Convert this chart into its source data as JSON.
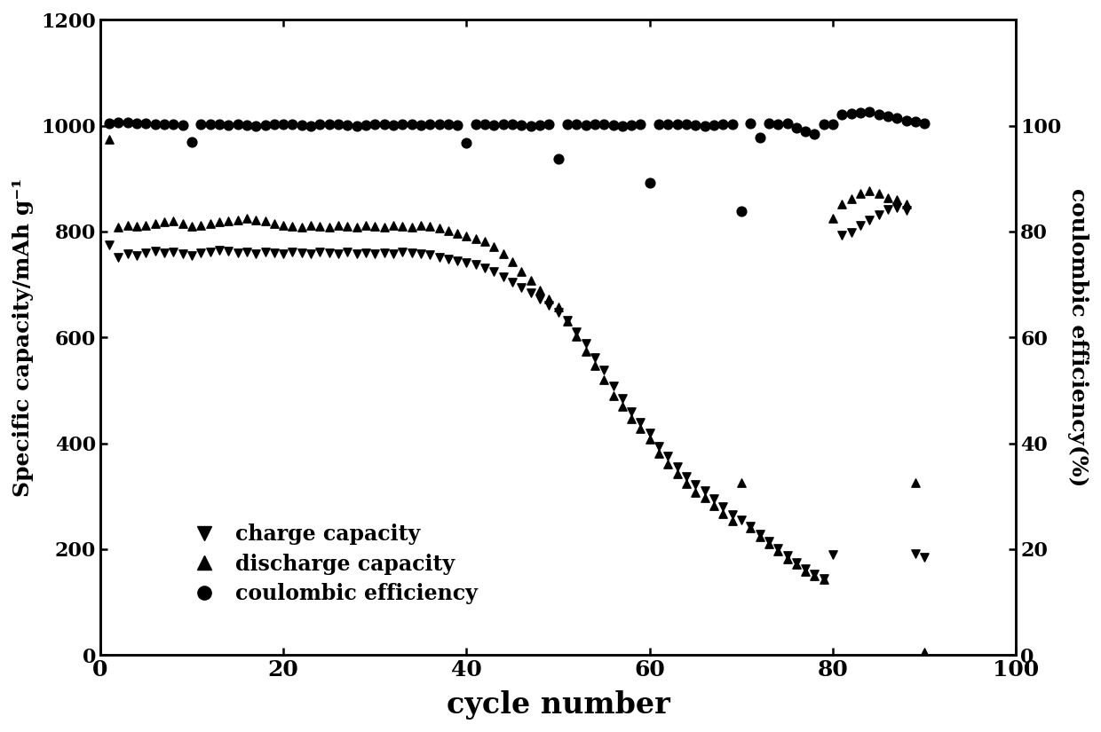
{
  "xlabel": "cycle number",
  "ylabel_left": "Specific capacity/mAh g⁻¹",
  "ylabel_right": "coulombic efficiency(%)",
  "xlim": [
    0,
    100
  ],
  "ylim_left": [
    0,
    1200
  ],
  "ylim_right": [
    0,
    120
  ],
  "xticks": [
    0,
    20,
    40,
    60,
    80,
    100
  ],
  "yticks_left": [
    0,
    200,
    400,
    600,
    800,
    1000,
    1200
  ],
  "yticks_right": [
    0,
    20,
    40,
    60,
    80,
    100
  ],
  "legend_labels": [
    "charge capacity",
    "discharge capacity",
    "coulombic efficiency"
  ],
  "background_color": "#ffffff",
  "marker_color": "#000000",
  "charge_capacity_x": [
    1,
    2,
    3,
    4,
    5,
    6,
    7,
    8,
    9,
    10,
    11,
    12,
    13,
    14,
    15,
    16,
    17,
    18,
    19,
    20,
    21,
    22,
    23,
    24,
    25,
    26,
    27,
    28,
    29,
    30,
    31,
    32,
    33,
    34,
    35,
    36,
    37,
    38,
    39,
    40,
    41,
    42,
    43,
    44,
    45,
    46,
    47,
    48,
    49,
    50,
    51,
    52,
    53,
    54,
    55,
    56,
    57,
    58,
    59,
    60,
    61,
    62,
    63,
    64,
    65,
    66,
    67,
    68,
    69,
    70,
    71,
    72,
    73,
    74,
    75,
    76,
    77,
    78,
    79,
    80,
    81,
    82,
    83,
    84,
    85,
    86,
    87,
    88,
    89,
    90
  ],
  "charge_capacity_y": [
    775,
    752,
    758,
    755,
    760,
    763,
    760,
    762,
    758,
    755,
    760,
    762,
    765,
    763,
    760,
    762,
    758,
    762,
    760,
    758,
    762,
    760,
    758,
    762,
    760,
    758,
    762,
    758,
    760,
    758,
    760,
    758,
    762,
    760,
    758,
    756,
    752,
    748,
    745,
    742,
    738,
    732,
    725,
    715,
    705,
    695,
    685,
    672,
    660,
    648,
    632,
    610,
    588,
    562,
    538,
    508,
    485,
    460,
    440,
    420,
    395,
    375,
    355,
    338,
    322,
    310,
    296,
    280,
    265,
    255,
    243,
    228,
    215,
    202,
    188,
    175,
    163,
    152,
    145,
    190,
    793,
    798,
    812,
    822,
    832,
    842,
    846,
    841,
    192,
    185
  ],
  "discharge_capacity_x": [
    1,
    2,
    3,
    4,
    5,
    6,
    7,
    8,
    9,
    10,
    11,
    12,
    13,
    14,
    15,
    16,
    17,
    18,
    19,
    20,
    21,
    22,
    23,
    24,
    25,
    26,
    27,
    28,
    29,
    30,
    31,
    32,
    33,
    34,
    35,
    36,
    37,
    38,
    39,
    40,
    41,
    42,
    43,
    44,
    45,
    46,
    47,
    48,
    49,
    50,
    51,
    52,
    53,
    54,
    55,
    56,
    57,
    58,
    59,
    60,
    61,
    62,
    63,
    64,
    65,
    66,
    67,
    68,
    69,
    70,
    71,
    72,
    73,
    74,
    75,
    76,
    77,
    78,
    79,
    80,
    81,
    82,
    83,
    84,
    85,
    86,
    87,
    88,
    89,
    90
  ],
  "discharge_capacity_y": [
    975,
    808,
    812,
    810,
    812,
    815,
    818,
    820,
    815,
    810,
    812,
    815,
    818,
    820,
    822,
    825,
    822,
    820,
    815,
    812,
    810,
    808,
    812,
    810,
    808,
    812,
    810,
    808,
    812,
    810,
    808,
    812,
    810,
    808,
    812,
    810,
    806,
    802,
    797,
    792,
    787,
    782,
    772,
    758,
    743,
    725,
    708,
    690,
    672,
    658,
    630,
    602,
    574,
    547,
    520,
    490,
    470,
    447,
    427,
    407,
    380,
    360,
    342,
    324,
    307,
    297,
    282,
    267,
    254,
    325,
    240,
    224,
    210,
    197,
    182,
    172,
    158,
    150,
    143,
    825,
    852,
    862,
    872,
    877,
    872,
    864,
    860,
    852,
    325,
    5
  ],
  "coulombic_efficiency_x": [
    1,
    2,
    3,
    4,
    5,
    6,
    7,
    8,
    9,
    10,
    11,
    12,
    13,
    14,
    15,
    16,
    17,
    18,
    19,
    20,
    21,
    22,
    23,
    24,
    25,
    26,
    27,
    28,
    29,
    30,
    31,
    32,
    33,
    34,
    35,
    36,
    37,
    38,
    39,
    40,
    41,
    42,
    43,
    44,
    45,
    46,
    47,
    48,
    49,
    50,
    51,
    52,
    53,
    54,
    55,
    56,
    57,
    58,
    59,
    60,
    61,
    62,
    63,
    64,
    65,
    66,
    67,
    68,
    69,
    70,
    71,
    72,
    73,
    74,
    75,
    76,
    77,
    78,
    79,
    80,
    81,
    82,
    83,
    84,
    85,
    86,
    87,
    88,
    89,
    90
  ],
  "coulombic_efficiency_y": [
    100.4,
    100.7,
    100.6,
    100.5,
    100.4,
    100.3,
    100.3,
    100.2,
    100.1,
    97.0,
    100.3,
    100.2,
    100.3,
    100.1,
    100.2,
    100.1,
    100.0,
    100.1,
    100.2,
    100.2,
    100.2,
    100.1,
    99.9,
    100.2,
    100.2,
    100.2,
    100.1,
    99.9,
    100.1,
    100.2,
    100.2,
    100.1,
    100.2,
    100.2,
    100.1,
    100.2,
    100.2,
    100.2,
    100.1,
    96.8,
    100.2,
    100.2,
    100.1,
    100.2,
    100.2,
    100.1,
    100.0,
    100.1,
    100.2,
    93.8,
    100.2,
    100.2,
    100.1,
    100.2,
    100.2,
    100.1,
    100.0,
    100.1,
    100.2,
    89.2,
    100.3,
    100.2,
    100.3,
    100.2,
    100.1,
    100.0,
    100.1,
    100.2,
    100.2,
    83.8,
    100.4,
    97.8,
    100.4,
    100.3,
    100.4,
    99.6,
    98.9,
    98.5,
    100.2,
    100.3,
    102.1,
    102.3,
    102.5,
    102.7,
    102.1,
    101.8,
    101.5,
    101.0,
    100.8,
    100.5
  ]
}
